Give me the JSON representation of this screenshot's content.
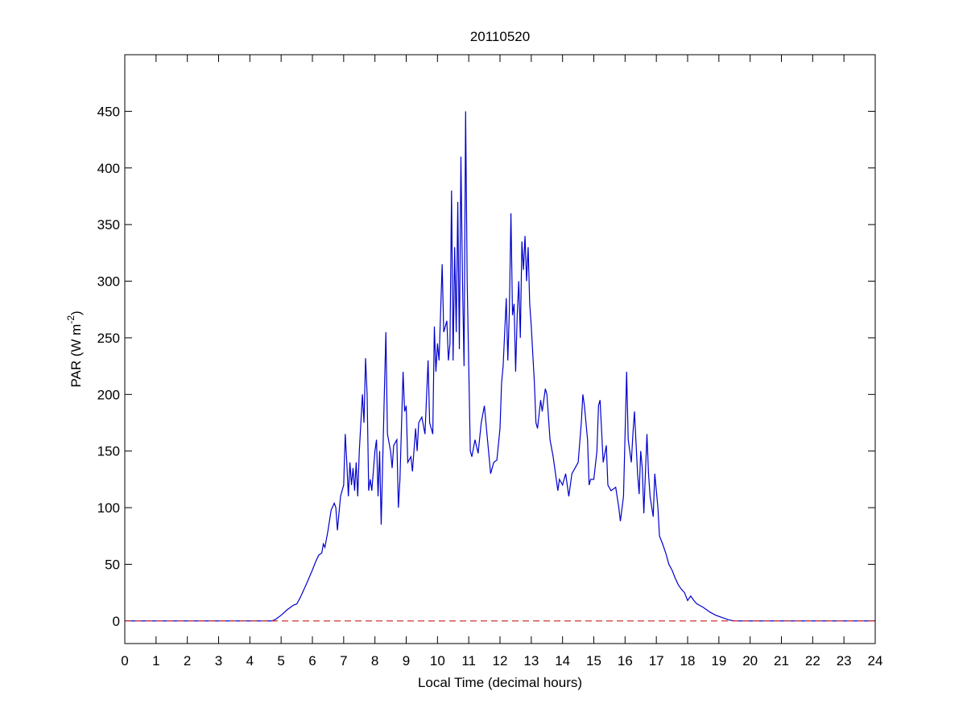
{
  "chart_data": {
    "type": "line",
    "title": "20110520",
    "xlabel": "Local Time (decimal hours)",
    "ylabel": {
      "text": "PAR (W m",
      "sup": "-2",
      "tail": ")"
    },
    "xlim": [
      0,
      24
    ],
    "ylim": [
      -20,
      500
    ],
    "xticks": [
      0,
      1,
      2,
      3,
      4,
      5,
      6,
      7,
      8,
      9,
      10,
      11,
      12,
      13,
      14,
      15,
      16,
      17,
      18,
      19,
      20,
      21,
      22,
      23,
      24
    ],
    "yticks": [
      0,
      50,
      100,
      150,
      200,
      250,
      300,
      350,
      400,
      450
    ],
    "hlines": [
      {
        "value": 0,
        "color": "#cc3333",
        "dashed": true
      }
    ],
    "x": [
      0,
      4.7,
      4.8,
      5.0,
      5.2,
      5.4,
      5.5,
      5.6,
      5.8,
      6.0,
      6.1,
      6.2,
      6.3,
      6.35,
      6.4,
      6.5,
      6.6,
      6.7,
      6.75,
      6.8,
      6.85,
      6.9,
      7.0,
      7.05,
      7.1,
      7.15,
      7.2,
      7.25,
      7.3,
      7.35,
      7.4,
      7.45,
      7.5,
      7.6,
      7.65,
      7.7,
      7.75,
      7.8,
      7.85,
      7.9,
      8.0,
      8.05,
      8.1,
      8.15,
      8.2,
      8.3,
      8.35,
      8.4,
      8.5,
      8.55,
      8.6,
      8.7,
      8.75,
      8.8,
      8.9,
      8.95,
      9.0,
      9.05,
      9.15,
      9.2,
      9.3,
      9.35,
      9.4,
      9.5,
      9.6,
      9.7,
      9.75,
      9.85,
      9.9,
      9.95,
      10.0,
      10.05,
      10.15,
      10.2,
      10.3,
      10.35,
      10.4,
      10.45,
      10.5,
      10.55,
      10.6,
      10.65,
      10.7,
      10.75,
      10.8,
      10.85,
      10.9,
      10.95,
      11.05,
      11.1,
      11.2,
      11.3,
      11.4,
      11.5,
      11.6,
      11.7,
      11.8,
      11.9,
      12.0,
      12.05,
      12.1,
      12.2,
      12.25,
      12.3,
      12.35,
      12.4,
      12.45,
      12.5,
      12.55,
      12.6,
      12.65,
      12.7,
      12.75,
      12.8,
      12.85,
      12.9,
      12.95,
      13.0,
      13.1,
      13.15,
      13.2,
      13.3,
      13.35,
      13.45,
      13.5,
      13.6,
      13.7,
      13.8,
      13.85,
      13.9,
      14.0,
      14.1,
      14.2,
      14.3,
      14.4,
      14.5,
      14.6,
      14.65,
      14.7,
      14.8,
      14.85,
      14.9,
      15.0,
      15.1,
      15.15,
      15.2,
      15.3,
      15.4,
      15.45,
      15.55,
      15.7,
      15.8,
      15.85,
      15.95,
      16.05,
      16.1,
      16.2,
      16.25,
      16.3,
      16.4,
      16.45,
      16.5,
      16.55,
      16.6,
      16.7,
      16.75,
      16.8,
      16.9,
      16.95,
      17.05,
      17.1,
      17.2,
      17.3,
      17.4,
      17.5,
      17.6,
      17.7,
      17.8,
      17.9,
      18.0,
      18.1,
      18.2,
      18.3,
      18.5,
      18.7,
      18.9,
      19.1,
      19.3,
      19.5,
      24
    ],
    "series": [
      {
        "color": "#0000cc",
        "values": [
          0,
          0,
          1,
          5,
          10,
          14,
          15,
          20,
          32,
          45,
          52,
          58,
          60,
          68,
          65,
          80,
          98,
          104,
          100,
          80,
          95,
          110,
          120,
          165,
          140,
          110,
          140,
          120,
          135,
          115,
          140,
          110,
          150,
          200,
          175,
          232,
          200,
          115,
          125,
          115,
          150,
          160,
          110,
          150,
          85,
          200,
          255,
          165,
          150,
          135,
          155,
          160,
          100,
          125,
          220,
          185,
          190,
          140,
          145,
          132,
          170,
          150,
          175,
          180,
          165,
          230,
          175,
          165,
          260,
          220,
          245,
          230,
          315,
          255,
          265,
          230,
          245,
          380,
          230,
          330,
          255,
          370,
          240,
          410,
          300,
          225,
          450,
          300,
          150,
          145,
          160,
          148,
          175,
          190,
          160,
          130,
          140,
          142,
          170,
          210,
          225,
          285,
          230,
          275,
          360,
          270,
          280,
          220,
          270,
          300,
          250,
          335,
          310,
          340,
          300,
          330,
          280,
          260,
          210,
          175,
          170,
          195,
          185,
          205,
          200,
          160,
          145,
          125,
          115,
          125,
          120,
          130,
          110,
          130,
          135,
          140,
          175,
          200,
          190,
          160,
          120,
          125,
          125,
          150,
          190,
          195,
          140,
          155,
          120,
          115,
          118,
          100,
          88,
          110,
          220,
          160,
          140,
          165,
          185,
          130,
          112,
          150,
          135,
          95,
          165,
          130,
          110,
          92,
          130,
          100,
          75,
          68,
          60,
          50,
          45,
          38,
          32,
          28,
          25,
          18,
          22,
          18,
          15,
          12,
          8,
          5,
          3,
          1,
          0,
          0
        ]
      }
    ]
  }
}
